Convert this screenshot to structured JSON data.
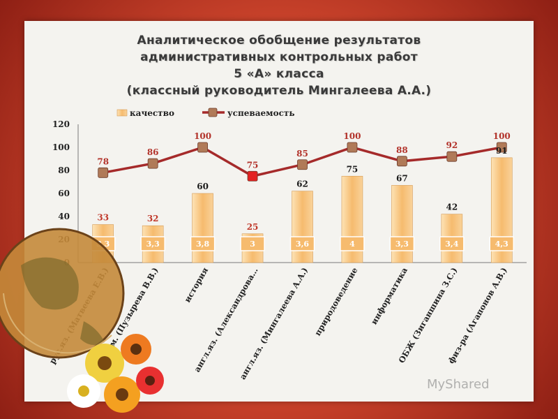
{
  "title_lines": [
    "Аналитическое обобщение результатов",
    "административных контрольных работ",
    "5 «А» класса",
    "(классный руководитель Мингалеева А.А.)"
  ],
  "watermark": "MyShared",
  "colors": {
    "quality": "#f6bb6e",
    "performance": "#a52a2a",
    "marker": "#b07a58",
    "marker_low": "#e32222",
    "avg_label": "#ffffff"
  },
  "chart_data": {
    "type": "bar",
    "categories": [
      "рус.яз. (Матвеева Е.В.)",
      "матем. (Пузырева В.В.)",
      "история",
      "англ.яз. (Александрова…",
      "англ.яз. (Мингалеева А.А.)",
      "природоведение",
      "информатика",
      "ОБЖ (Зиганшина З.С.)",
      "физ-ра (Агапонов А.В.)"
    ],
    "series": [
      {
        "name": "качество",
        "type": "bar",
        "values": [
          33,
          32,
          60,
          25,
          62,
          75,
          67,
          42,
          91
        ]
      },
      {
        "name": "успеваемость",
        "type": "line",
        "values": [
          78,
          86,
          100,
          75,
          85,
          100,
          88,
          92,
          100
        ]
      }
    ],
    "avg_marks": [
      "3,3",
      "3,3",
      "3,8",
      "3",
      "3,6",
      "4",
      "3,3",
      "3,4",
      "4,3"
    ],
    "y_ticks": [
      "0",
      "20",
      "40",
      "60",
      "80",
      "100",
      "120"
    ],
    "ylim": [
      0,
      120
    ],
    "legend_position": "top-center",
    "grid": false
  }
}
